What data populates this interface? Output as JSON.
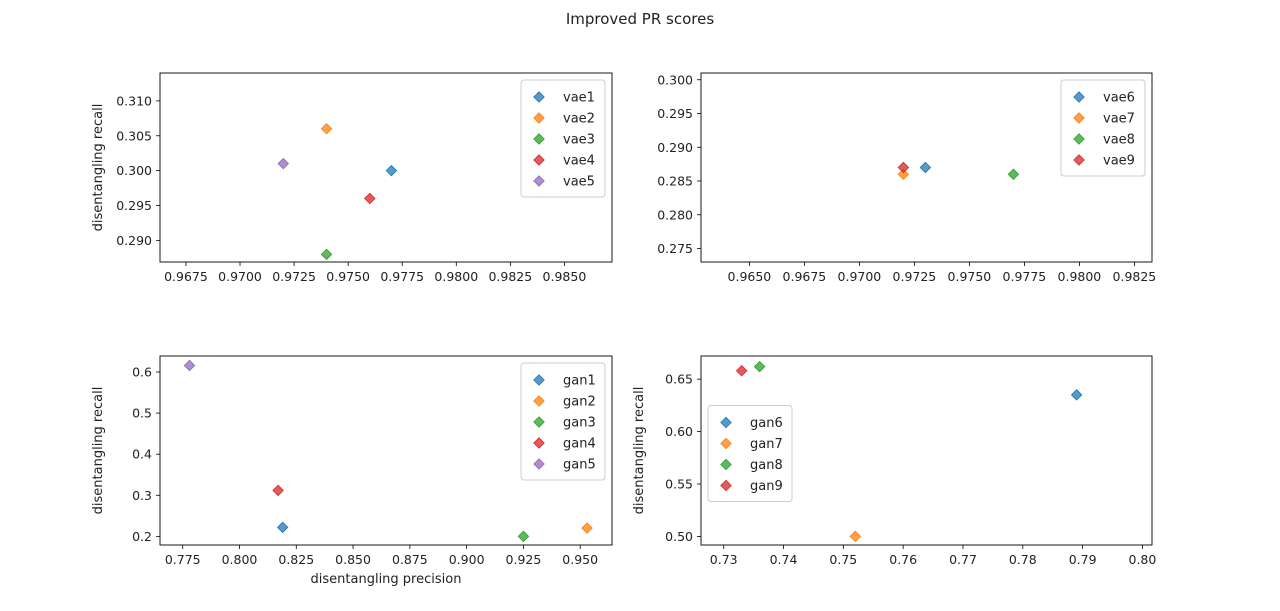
{
  "figure": {
    "title": "Improved PR scores"
  },
  "colors": [
    "#1f77b4",
    "#ff7f0e",
    "#2ca02c",
    "#d62728",
    "#9467bd"
  ],
  "chart_data": [
    {
      "type": "scatter",
      "xlabel": "",
      "ylabel": "disentangling recall",
      "xlim": [
        0.9663,
        0.9872
      ],
      "ylim": [
        0.2869,
        0.314
      ],
      "xticks": [
        0.9675,
        0.97,
        0.9725,
        0.975,
        0.9775,
        0.98,
        0.9825,
        0.985
      ],
      "xtick_labels": [
        "0.9675",
        "0.9700",
        "0.9725",
        "0.9750",
        "0.9775",
        "0.9800",
        "0.9825",
        "0.9850"
      ],
      "yticks": [
        0.29,
        0.295,
        0.3,
        0.305,
        0.31
      ],
      "ytick_labels": [
        "0.290",
        "0.295",
        "0.300",
        "0.305",
        "0.310"
      ],
      "legend": "upper-right",
      "series": [
        {
          "name": "vae1",
          "x": [
            0.977
          ],
          "y": [
            0.3
          ]
        },
        {
          "name": "vae2",
          "x": [
            0.974
          ],
          "y": [
            0.306
          ]
        },
        {
          "name": "vae3",
          "x": [
            0.974
          ],
          "y": [
            0.288
          ]
        },
        {
          "name": "vae4",
          "x": [
            0.976
          ],
          "y": [
            0.296
          ]
        },
        {
          "name": "vae5",
          "x": [
            0.972
          ],
          "y": [
            0.301
          ]
        }
      ]
    },
    {
      "type": "scatter",
      "xlabel": "",
      "ylabel": "",
      "xlim": [
        0.9628,
        0.9833
      ],
      "ylim": [
        0.273,
        0.301
      ],
      "xticks": [
        0.965,
        0.9675,
        0.97,
        0.9725,
        0.975,
        0.9775,
        0.98,
        0.9825
      ],
      "xtick_labels": [
        "0.9650",
        "0.9675",
        "0.9700",
        "0.9725",
        "0.9750",
        "0.9775",
        "0.9800",
        "0.9825"
      ],
      "yticks": [
        0.275,
        0.28,
        0.285,
        0.29,
        0.295,
        0.3
      ],
      "ytick_labels": [
        "0.275",
        "0.280",
        "0.285",
        "0.290",
        "0.295",
        "0.300"
      ],
      "legend": "upper-right",
      "series": [
        {
          "name": "vae6",
          "x": [
            0.973
          ],
          "y": [
            0.287
          ]
        },
        {
          "name": "vae7",
          "x": [
            0.972
          ],
          "y": [
            0.286
          ]
        },
        {
          "name": "vae8",
          "x": [
            0.977
          ],
          "y": [
            0.286
          ]
        },
        {
          "name": "vae9",
          "x": [
            0.972
          ],
          "y": [
            0.287
          ]
        }
      ]
    },
    {
      "type": "scatter",
      "xlabel": "disentangling precision",
      "ylabel": "disentangling recall",
      "xlim": [
        0.765,
        0.964
      ],
      "ylim": [
        0.179,
        0.639
      ],
      "xticks": [
        0.775,
        0.8,
        0.825,
        0.85,
        0.875,
        0.9,
        0.925,
        0.95
      ],
      "xtick_labels": [
        "0.775",
        "0.800",
        "0.825",
        "0.850",
        "0.875",
        "0.900",
        "0.925",
        "0.950"
      ],
      "yticks": [
        0.2,
        0.3,
        0.4,
        0.5,
        0.6
      ],
      "ytick_labels": [
        "0.2",
        "0.3",
        "0.4",
        "0.5",
        "0.6"
      ],
      "legend": "upper-right",
      "series": [
        {
          "name": "gan1",
          "x": [
            0.819
          ],
          "y": [
            0.222
          ]
        },
        {
          "name": "gan2",
          "x": [
            0.953
          ],
          "y": [
            0.22
          ]
        },
        {
          "name": "gan3",
          "x": [
            0.925
          ],
          "y": [
            0.2
          ]
        },
        {
          "name": "gan4",
          "x": [
            0.817
          ],
          "y": [
            0.312
          ]
        },
        {
          "name": "gan5",
          "x": [
            0.778
          ],
          "y": [
            0.616
          ]
        }
      ]
    },
    {
      "type": "scatter",
      "xlabel": "",
      "ylabel": "disentangling recall",
      "xlim": [
        0.7262,
        0.8016
      ],
      "ylim": [
        0.4918,
        0.6721
      ],
      "xticks": [
        0.73,
        0.74,
        0.75,
        0.76,
        0.77,
        0.78,
        0.79,
        0.8
      ],
      "xtick_labels": [
        "0.73",
        "0.74",
        "0.75",
        "0.76",
        "0.77",
        "0.78",
        "0.79",
        "0.80"
      ],
      "yticks": [
        0.5,
        0.55,
        0.6,
        0.65
      ],
      "ytick_labels": [
        "0.50",
        "0.55",
        "0.60",
        "0.65"
      ],
      "legend": "center-left",
      "series": [
        {
          "name": "gan6",
          "x": [
            0.789
          ],
          "y": [
            0.635
          ]
        },
        {
          "name": "gan7",
          "x": [
            0.752
          ],
          "y": [
            0.5
          ]
        },
        {
          "name": "gan8",
          "x": [
            0.736
          ],
          "y": [
            0.662
          ]
        },
        {
          "name": "gan9",
          "x": [
            0.733
          ],
          "y": [
            0.658
          ]
        }
      ]
    }
  ]
}
